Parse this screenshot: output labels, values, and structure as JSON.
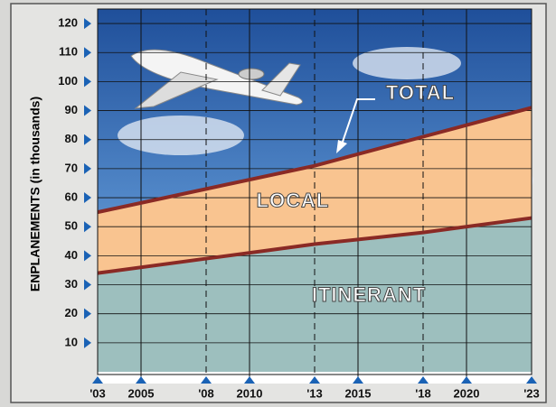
{
  "chart_data": {
    "type": "stacked-area",
    "y_label": "ENPLANEMENTS (in thousands)",
    "annotation": "TOTAL",
    "x": [
      2003,
      2008,
      2013,
      2018,
      2023
    ],
    "series": [
      {
        "name": "ITINERANT",
        "color": "#9dbfbe",
        "values": [
          34,
          39,
          44,
          48,
          53
        ]
      },
      {
        "name": "LOCAL",
        "color": "#f9c490",
        "values": [
          21,
          24,
          27,
          33,
          38
        ]
      }
    ],
    "line_color": "#8a2a25",
    "xlim": [
      2003,
      2023
    ],
    "xticks": [
      {
        "value": 2003,
        "label": "'03"
      },
      2005,
      {
        "value": 2008,
        "label": "'08"
      },
      2010,
      {
        "value": 2013,
        "label": "'13"
      },
      2015,
      {
        "value": 2018,
        "label": "'18"
      },
      2020,
      {
        "value": 2023,
        "label": "'23"
      }
    ],
    "ylim": [
      0,
      125
    ],
    "yticks": [
      10,
      20,
      30,
      40,
      50,
      60,
      70,
      80,
      90,
      100,
      110,
      120
    ],
    "grid": true
  }
}
